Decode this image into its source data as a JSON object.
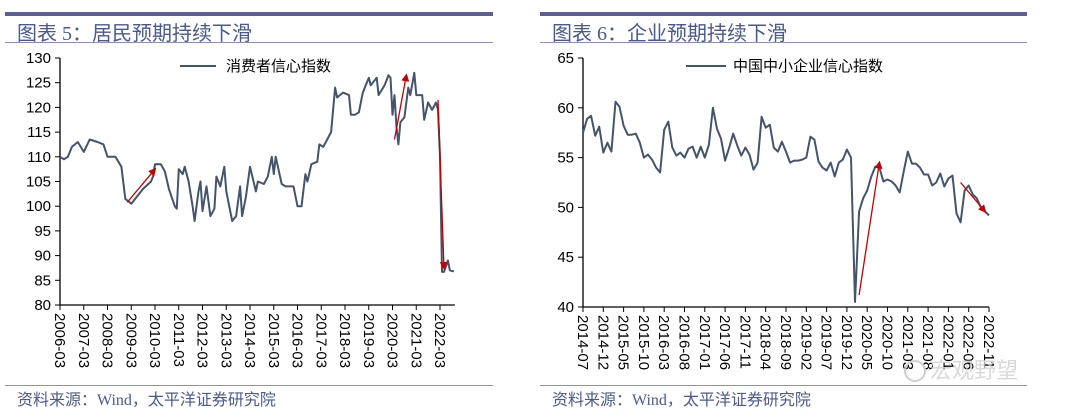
{
  "colors": {
    "series": "#44546a",
    "annotation": "#c00000",
    "title": "#4a5a8a",
    "bar": "#5b5f97"
  },
  "chart_data": [
    {
      "type": "line",
      "title": "图表 5：居民预期持续下滑",
      "source": "资料来源：Wind，太平洋证券研究院",
      "legend": "消费者信心指数",
      "legend_position": "top-center",
      "grid": false,
      "ylim": [
        80,
        130
      ],
      "yticks": [
        80,
        85,
        90,
        95,
        100,
        105,
        110,
        115,
        120,
        125,
        130
      ],
      "xticks": [
        "2006-03",
        "2007-03",
        "2008-03",
        "2009-03",
        "2010-03",
        "2011-03",
        "2012-03",
        "2013-03",
        "2014-03",
        "2015-03",
        "2016-03",
        "2017-03",
        "2018-03",
        "2019-03",
        "2020-03",
        "2021-03",
        "2022-03"
      ],
      "series": [
        {
          "name": "消费者信心指数",
          "points": [
            [
              "2006-03",
              110
            ],
            [
              "2006-05",
              109.5
            ],
            [
              "2006-07",
              110
            ],
            [
              "2006-09",
              112
            ],
            [
              "2006-12",
              113
            ],
            [
              "2007-03",
              111
            ],
            [
              "2007-06",
              113.5
            ],
            [
              "2007-10",
              113
            ],
            [
              "2008-01",
              112.5
            ],
            [
              "2008-03",
              110
            ],
            [
              "2008-07",
              110
            ],
            [
              "2008-10",
              108
            ],
            [
              "2008-12",
              101.5
            ],
            [
              "2009-03",
              100.5
            ],
            [
              "2009-06",
              102
            ],
            [
              "2009-09",
              103.5
            ],
            [
              "2010-01",
              105
            ],
            [
              "2010-02",
              106
            ],
            [
              "2010-03",
              108.5
            ],
            [
              "2010-06",
              108.5
            ],
            [
              "2010-08",
              107
            ],
            [
              "2010-10",
              103.5
            ],
            [
              "2011-01",
              100
            ],
            [
              "2011-02",
              99.5
            ],
            [
              "2011-03",
              107.5
            ],
            [
              "2011-05",
              106.5
            ],
            [
              "2011-06",
              108
            ],
            [
              "2011-08",
              105
            ],
            [
              "2011-10",
              100
            ],
            [
              "2011-11",
              97
            ],
            [
              "2012-01",
              103
            ],
            [
              "2012-02",
              105
            ],
            [
              "2012-03",
              99
            ],
            [
              "2012-05",
              104
            ],
            [
              "2012-07",
              98
            ],
            [
              "2012-09",
              99.5
            ],
            [
              "2012-10",
              106
            ],
            [
              "2012-12",
              104
            ],
            [
              "2013-02",
              108
            ],
            [
              "2013-03",
              103
            ],
            [
              "2013-06",
              97
            ],
            [
              "2013-08",
              98
            ],
            [
              "2013-10",
              104
            ],
            [
              "2013-11",
              98
            ],
            [
              "2014-01",
              102
            ],
            [
              "2014-03",
              108
            ],
            [
              "2014-06",
              103
            ],
            [
              "2014-07",
              105
            ],
            [
              "2014-10",
              104.5
            ],
            [
              "2014-12",
              106
            ],
            [
              "2015-02",
              110
            ],
            [
              "2015-03",
              106.5
            ],
            [
              "2015-04",
              110
            ],
            [
              "2015-07",
              104.5
            ],
            [
              "2015-09",
              104
            ],
            [
              "2016-01",
              104
            ],
            [
              "2016-03",
              100
            ],
            [
              "2016-05",
              100
            ],
            [
              "2016-07",
              106.5
            ],
            [
              "2016-08",
              105
            ],
            [
              "2016-10",
              108.5
            ],
            [
              "2017-01",
              109
            ],
            [
              "2017-02",
              112.5
            ],
            [
              "2017-04",
              112
            ],
            [
              "2017-06",
              113.5
            ],
            [
              "2017-08",
              115
            ],
            [
              "2017-10",
              124
            ],
            [
              "2017-11",
              122
            ],
            [
              "2018-02",
              123
            ],
            [
              "2018-05",
              122.5
            ],
            [
              "2018-06",
              118.5
            ],
            [
              "2018-08",
              118.5
            ],
            [
              "2018-10",
              119
            ],
            [
              "2018-12",
              123
            ],
            [
              "2019-03",
              126
            ],
            [
              "2019-04",
              124.5
            ],
            [
              "2019-07",
              126
            ],
            [
              "2019-08",
              122.5
            ],
            [
              "2019-11",
              124.5
            ],
            [
              "2020-01",
              126.5
            ],
            [
              "2020-02",
              126
            ],
            [
              "2020-03",
              118.5
            ],
            [
              "2020-04",
              122.5
            ],
            [
              "2020-05",
              116
            ],
            [
              "2020-06",
              112.5
            ],
            [
              "2020-07",
              117
            ],
            [
              "2020-09",
              118
            ],
            [
              "2020-11",
              124
            ],
            [
              "2020-12",
              122.5
            ],
            [
              "2021-02",
              127
            ],
            [
              "2021-03",
              122.5
            ],
            [
              "2021-06",
              122.5
            ],
            [
              "2021-07",
              117.5
            ],
            [
              "2021-09",
              121
            ],
            [
              "2021-11",
              119.5
            ],
            [
              "2022-01",
              121
            ],
            [
              "2022-02",
              119.5
            ],
            [
              "2022-03",
              110
            ],
            [
              "2022-04",
              86.7
            ],
            [
              "2022-05",
              86.7
            ],
            [
              "2022-07",
              89
            ],
            [
              "2022-08",
              87
            ],
            [
              "2022-10",
              86.8
            ]
          ]
        }
      ],
      "annotations": [
        {
          "type": "arrow",
          "from": [
            "2009-01",
            100.8
          ],
          "to": [
            "2010-03",
            107.5
          ]
        },
        {
          "type": "arrow",
          "from": [
            "2020-04",
            113.5
          ],
          "to": [
            "2020-10",
            126.5
          ]
        },
        {
          "type": "arrow",
          "from": [
            "2022-02",
            121.5
          ],
          "to": [
            "2022-05",
            87.5
          ]
        }
      ]
    },
    {
      "type": "line",
      "title": "图表 6：企业预期持续下滑",
      "source": "资料来源：Wind，太平洋证券研究院",
      "legend": "中国中小企业信心指数",
      "legend_position": "top-center",
      "grid": false,
      "ylim": [
        40,
        65
      ],
      "yticks": [
        40,
        45,
        50,
        55,
        60,
        65
      ],
      "xticks": [
        "2014-07",
        "2014-12",
        "2015-05",
        "2015-10",
        "2016-03",
        "2016-08",
        "2017-01",
        "2017-06",
        "2017-11",
        "2018-04",
        "2018-09",
        "2019-02",
        "2019-07",
        "2019-12",
        "2020-05",
        "2020-10",
        "2021-03",
        "2021-08",
        "2022-01",
        "2022-06",
        "2022-11"
      ],
      "watermark": "宏观野望",
      "series": [
        {
          "name": "中国中小企业信心指数",
          "start": "2014-07",
          "frequency": "monthly",
          "values": [
            57.5,
            58.9,
            59.2,
            57.2,
            58.1,
            55.5,
            56.5,
            55.6,
            60.6,
            60.1,
            58.2,
            57.3,
            57.3,
            57.4,
            56.5,
            55.0,
            55.3,
            54.8,
            54.0,
            53.5,
            57.8,
            58.6,
            56.0,
            55.2,
            55.5,
            55.0,
            55.9,
            56.1,
            55.0,
            56.1,
            55.0,
            56.3,
            60.0,
            57.9,
            56.9,
            54.7,
            56.0,
            57.4,
            56.2,
            55.2,
            56.0,
            55.3,
            53.8,
            54.5,
            59.1,
            58.0,
            58.3,
            56.0,
            55.6,
            56.6,
            55.6,
            54.5,
            54.7,
            54.7,
            54.8,
            55.0,
            57.1,
            56.8,
            54.6,
            54.0,
            53.7,
            54.5,
            53.1,
            54.5,
            54.8,
            55.8,
            55.0,
            40.5,
            49.6,
            50.9,
            51.7,
            53.1,
            54.1,
            54.0,
            52.6,
            52.8,
            52.6,
            52.2,
            51.5,
            53.6,
            55.6,
            54.4,
            54.4,
            54.0,
            53.3,
            53.3,
            52.2,
            52.5,
            53.4,
            52.1,
            52.9,
            53.2,
            49.4,
            48.5,
            51.7,
            52.2,
            51.3,
            50.9,
            50.0,
            49.6,
            49.2
          ]
        }
      ],
      "annotations": [
        {
          "type": "arrow",
          "from": [
            "2020-03",
            41.2
          ],
          "to": [
            "2020-08",
            54.5
          ]
        },
        {
          "type": "arrow",
          "from": [
            "2022-04",
            52.5
          ],
          "to": [
            "2022-10",
            49.6
          ]
        }
      ]
    }
  ]
}
